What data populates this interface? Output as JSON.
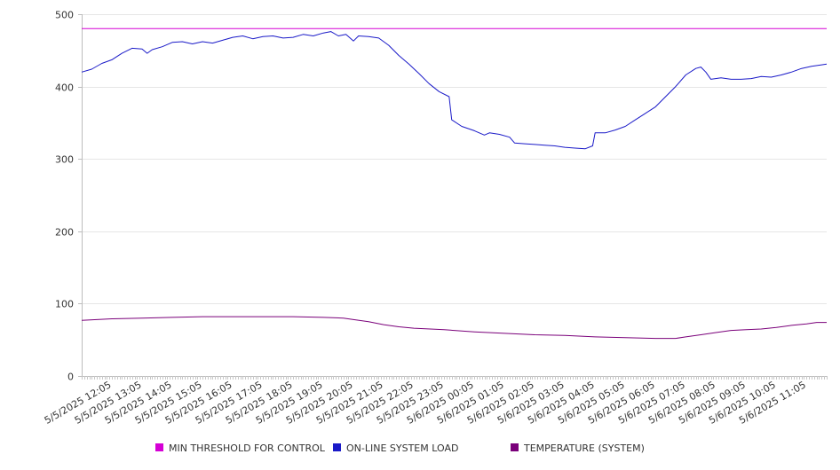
{
  "chart_data": {
    "type": "line",
    "title": "",
    "xlabel": "",
    "ylabel": "",
    "ylim": [
      0,
      500
    ],
    "y_ticks": [
      0,
      100,
      200,
      300,
      400,
      500
    ],
    "x_ticks": [
      "5/5/2025 12:05",
      "5/5/2025 13:05",
      "5/5/2025 14:05",
      "5/5/2025 15:05",
      "5/5/2025 16:05",
      "5/5/2025 17:05",
      "5/5/2025 18:05",
      "5/5/2025 19:05",
      "5/5/2025 20:05",
      "5/5/2025 21:05",
      "5/5/2025 22:05",
      "5/5/2025 23:05",
      "5/6/2025 00:05",
      "5/6/2025 01:05",
      "5/6/2025 02:05",
      "5/6/2025 03:05",
      "5/6/2025 04:05",
      "5/6/2025 05:05",
      "5/6/2025 06:05",
      "5/6/2025 07:05",
      "5/6/2025 08:05",
      "5/6/2025 09:05",
      "5/6/2025 10:05",
      "5/6/2025 11:05"
    ],
    "x_range": [
      "5/5/2025 11:05",
      "5/6/2025 11:45"
    ],
    "grid": "horizontal",
    "legend_position": "bottom",
    "series": [
      {
        "name": "MIN THRESHOLD FOR CONTROL",
        "color": "#d500d5",
        "points": [
          [
            "5/5/2025 11:05",
            480
          ],
          [
            "5/6/2025 11:45",
            480
          ]
        ]
      },
      {
        "name": "ON-LINE SYSTEM LOAD",
        "color": "#1a1ac8",
        "points": [
          [
            "5/5/2025 11:05",
            420
          ],
          [
            "5/5/2025 11:25",
            424
          ],
          [
            "5/5/2025 11:45",
            432
          ],
          [
            "5/5/2025 12:05",
            437
          ],
          [
            "5/5/2025 12:25",
            446
          ],
          [
            "5/5/2025 12:45",
            453
          ],
          [
            "5/5/2025 13:05",
            452
          ],
          [
            "5/5/2025 13:15",
            446
          ],
          [
            "5/5/2025 13:25",
            451
          ],
          [
            "5/5/2025 13:45",
            455
          ],
          [
            "5/5/2025 14:05",
            461
          ],
          [
            "5/5/2025 14:25",
            462
          ],
          [
            "5/5/2025 14:45",
            459
          ],
          [
            "5/5/2025 15:05",
            462
          ],
          [
            "5/5/2025 15:25",
            460
          ],
          [
            "5/5/2025 15:45",
            464
          ],
          [
            "5/5/2025 16:05",
            468
          ],
          [
            "5/5/2025 16:25",
            470
          ],
          [
            "5/5/2025 16:45",
            466
          ],
          [
            "5/5/2025 17:05",
            469
          ],
          [
            "5/5/2025 17:25",
            470
          ],
          [
            "5/5/2025 17:45",
            467
          ],
          [
            "5/5/2025 18:05",
            468
          ],
          [
            "5/5/2025 18:25",
            472
          ],
          [
            "5/5/2025 18:45",
            470
          ],
          [
            "5/5/2025 19:05",
            474
          ],
          [
            "5/5/2025 19:20",
            476
          ],
          [
            "5/5/2025 19:35",
            470
          ],
          [
            "5/5/2025 19:50",
            472
          ],
          [
            "5/5/2025 20:05",
            463
          ],
          [
            "5/5/2025 20:15",
            470
          ],
          [
            "5/5/2025 20:35",
            469
          ],
          [
            "5/5/2025 20:55",
            467
          ],
          [
            "5/5/2025 21:15",
            457
          ],
          [
            "5/5/2025 21:35",
            443
          ],
          [
            "5/5/2025 21:55",
            431
          ],
          [
            "5/5/2025 22:15",
            418
          ],
          [
            "5/5/2025 22:35",
            404
          ],
          [
            "5/5/2025 22:55",
            393
          ],
          [
            "5/5/2025 23:15",
            386
          ],
          [
            "5/5/2025 23:20",
            354
          ],
          [
            "5/5/2025 23:40",
            345
          ],
          [
            "5/6/2025 00:05",
            339
          ],
          [
            "5/6/2025 00:25",
            333
          ],
          [
            "5/6/2025 00:35",
            336
          ],
          [
            "5/6/2025 00:55",
            334
          ],
          [
            "5/6/2025 01:15",
            330
          ],
          [
            "5/6/2025 01:25",
            322
          ],
          [
            "5/6/2025 01:45",
            321
          ],
          [
            "5/6/2025 02:05",
            320
          ],
          [
            "5/6/2025 02:25",
            319
          ],
          [
            "5/6/2025 02:45",
            318
          ],
          [
            "5/6/2025 03:05",
            316
          ],
          [
            "5/6/2025 03:25",
            315
          ],
          [
            "5/6/2025 03:45",
            314
          ],
          [
            "5/6/2025 04:00",
            318
          ],
          [
            "5/6/2025 04:05",
            336
          ],
          [
            "5/6/2025 04:25",
            336
          ],
          [
            "5/6/2025 04:45",
            340
          ],
          [
            "5/6/2025 05:05",
            345
          ],
          [
            "5/6/2025 05:25",
            354
          ],
          [
            "5/6/2025 05:45",
            363
          ],
          [
            "5/6/2025 06:05",
            372
          ],
          [
            "5/6/2025 06:25",
            386
          ],
          [
            "5/6/2025 06:45",
            400
          ],
          [
            "5/6/2025 07:05",
            416
          ],
          [
            "5/6/2025 07:25",
            425
          ],
          [
            "5/6/2025 07:35",
            427
          ],
          [
            "5/6/2025 07:45",
            420
          ],
          [
            "5/6/2025 07:55",
            410
          ],
          [
            "5/6/2025 08:15",
            412
          ],
          [
            "5/6/2025 08:35",
            410
          ],
          [
            "5/6/2025 08:55",
            410
          ],
          [
            "5/6/2025 09:15",
            411
          ],
          [
            "5/6/2025 09:35",
            414
          ],
          [
            "5/6/2025 09:55",
            413
          ],
          [
            "5/6/2025 10:15",
            416
          ],
          [
            "5/6/2025 10:35",
            420
          ],
          [
            "5/6/2025 10:55",
            425
          ],
          [
            "5/6/2025 11:15",
            428
          ],
          [
            "5/6/2025 11:35",
            430
          ],
          [
            "5/6/2025 11:45",
            431
          ]
        ]
      },
      {
        "name": "TEMPERATURE (SYSTEM)",
        "color": "#7a007a",
        "points": [
          [
            "5/5/2025 11:05",
            77
          ],
          [
            "5/5/2025 11:35",
            78
          ],
          [
            "5/5/2025 12:05",
            79
          ],
          [
            "5/5/2025 13:05",
            80
          ],
          [
            "5/5/2025 14:05",
            81
          ],
          [
            "5/5/2025 15:05",
            82
          ],
          [
            "5/5/2025 16:05",
            82
          ],
          [
            "5/5/2025 17:05",
            82
          ],
          [
            "5/5/2025 18:05",
            82
          ],
          [
            "5/5/2025 19:05",
            81
          ],
          [
            "5/5/2025 19:45",
            80
          ],
          [
            "5/5/2025 20:05",
            78
          ],
          [
            "5/5/2025 20:35",
            75
          ],
          [
            "5/5/2025 21:05",
            71
          ],
          [
            "5/5/2025 21:35",
            68
          ],
          [
            "5/5/2025 22:05",
            66
          ],
          [
            "5/5/2025 23:05",
            64
          ],
          [
            "5/6/2025 00:05",
            61
          ],
          [
            "5/6/2025 01:05",
            59
          ],
          [
            "5/6/2025 02:05",
            57
          ],
          [
            "5/6/2025 03:05",
            56
          ],
          [
            "5/6/2025 04:05",
            54
          ],
          [
            "5/6/2025 05:05",
            53
          ],
          [
            "5/6/2025 06:05",
            52
          ],
          [
            "5/6/2025 06:45",
            52
          ],
          [
            "5/6/2025 07:05",
            54
          ],
          [
            "5/6/2025 07:35",
            57
          ],
          [
            "5/6/2025 08:05",
            60
          ],
          [
            "5/6/2025 08:35",
            63
          ],
          [
            "5/6/2025 09:05",
            64
          ],
          [
            "5/6/2025 09:35",
            65
          ],
          [
            "5/6/2025 10:05",
            67
          ],
          [
            "5/6/2025 10:35",
            70
          ],
          [
            "5/6/2025 11:05",
            72
          ],
          [
            "5/6/2025 11:25",
            74
          ],
          [
            "5/6/2025 11:45",
            74
          ]
        ]
      }
    ]
  }
}
